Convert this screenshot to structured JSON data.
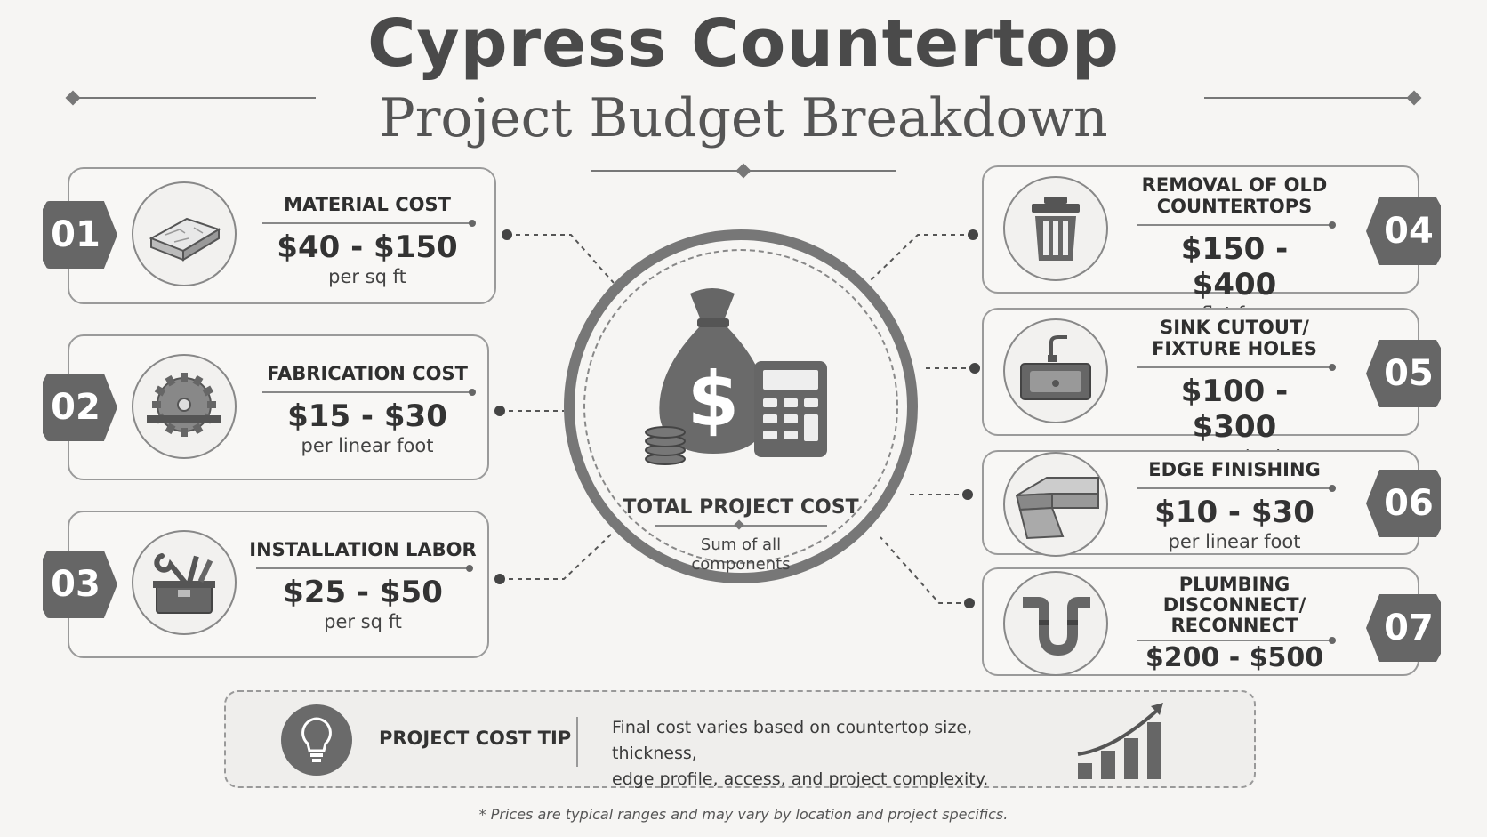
{
  "header": {
    "title": "Cypress Countertop",
    "subtitle": "Project Budget Breakdown"
  },
  "center": {
    "label": "TOTAL PROJECT COST",
    "sub_line1": "Sum of all",
    "sub_line2": "components"
  },
  "items": [
    {
      "num": "01",
      "label_line1": "MATERIAL COST",
      "label_line2": "",
      "price": "$40 - $150",
      "unit": "per sq ft",
      "icon": "stone-slab-icon"
    },
    {
      "num": "02",
      "label_line1": "FABRICATION COST",
      "label_line2": "",
      "price": "$15 - $30",
      "unit": "per linear foot",
      "icon": "saw-blade-icon"
    },
    {
      "num": "03",
      "label_line1": "INSTALLATION LABOR",
      "label_line2": "",
      "price": "$25 - $50",
      "unit": "per sq ft",
      "icon": "toolbox-icon"
    },
    {
      "num": "04",
      "label_line1": "REMOVAL OF OLD",
      "label_line2": "COUNTERTOPS",
      "price": "$150 - $400",
      "unit": "flat fee",
      "icon": "trash-can-icon"
    },
    {
      "num": "05",
      "label_line1": "SINK CUTOUT/",
      "label_line2": "FIXTURE HOLES",
      "price": "$100 - $300",
      "unit": "per cutout",
      "icon": "sink-icon"
    },
    {
      "num": "06",
      "label_line1": "EDGE FINISHING",
      "label_line2": "",
      "price": "$10 - $30",
      "unit": "per linear foot",
      "icon": "countertop-edge-icon"
    },
    {
      "num": "07",
      "label_line1": "PLUMBING",
      "label_line2": "DISCONNECT/",
      "label_line3": "RECONNECT",
      "price": "$200 - $500",
      "unit": "",
      "icon": "pipe-icon"
    }
  ],
  "tip": {
    "title": "PROJECT COST TIP",
    "line1": "Final cost varies based on countertop size, thickness,",
    "line2": "edge profile, access, and project complexity."
  },
  "footnote": "* Prices are typical ranges and may vary by location and project specifics.",
  "colors": {
    "background": "#f6f5f3",
    "badge": "#666666",
    "text": "#3b3b3b"
  }
}
